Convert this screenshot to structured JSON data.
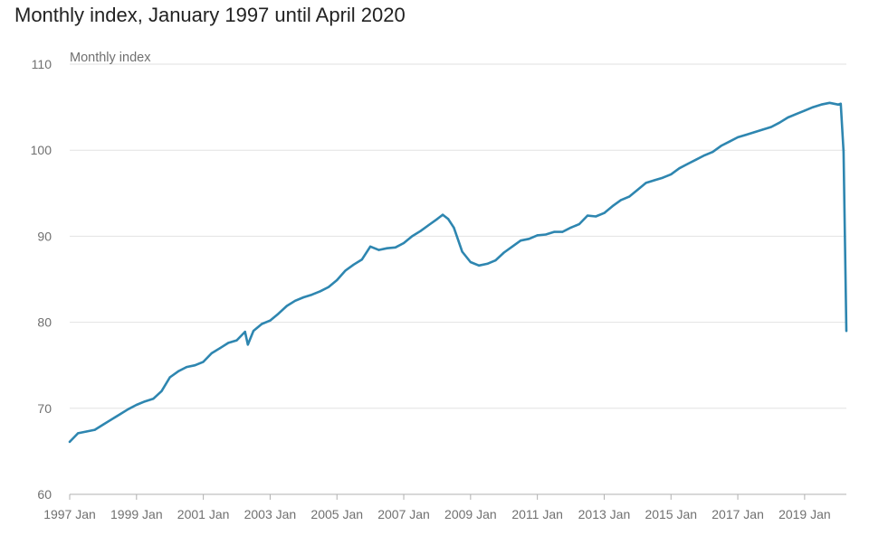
{
  "title": "Monthly index, January 1997 until April 2020",
  "colors": {
    "line": "#2e86b0",
    "grid": "#e2e2e2",
    "axis": "#b0b0b0",
    "text": "#707070"
  },
  "chart_data": {
    "type": "line",
    "title": "Monthly index, January 1997 until April 2020",
    "ylabel": "Monthly index",
    "xlabel": "",
    "ylim": [
      60,
      110
    ],
    "yticks": [
      60,
      70,
      80,
      90,
      100,
      110
    ],
    "ytick_labels": [
      "60",
      "70",
      "80",
      "90",
      "100",
      "110"
    ],
    "xlim": [
      "1997-01",
      "2020-04"
    ],
    "xtick_labels": [
      "1997 Jan",
      "1999 Jan",
      "2001 Jan",
      "2003 Jan",
      "2005 Jan",
      "2007 Jan",
      "2009 Jan",
      "2011 Jan",
      "2013 Jan",
      "2015 Jan",
      "2017 Jan",
      "2019 Jan"
    ],
    "grid": "horizontal",
    "series": [
      {
        "name": "",
        "x": [
          "1997-01",
          "1997-04",
          "1997-07",
          "1997-10",
          "1998-01",
          "1998-04",
          "1998-07",
          "1998-10",
          "1999-01",
          "1999-04",
          "1999-07",
          "1999-10",
          "2000-01",
          "2000-04",
          "2000-07",
          "2000-10",
          "2001-01",
          "2001-04",
          "2001-07",
          "2001-10",
          "2002-01",
          "2002-04",
          "2002-05",
          "2002-07",
          "2002-10",
          "2003-01",
          "2003-04",
          "2003-07",
          "2003-10",
          "2004-01",
          "2004-04",
          "2004-07",
          "2004-10",
          "2005-01",
          "2005-04",
          "2005-07",
          "2005-10",
          "2006-01",
          "2006-04",
          "2006-07",
          "2006-10",
          "2007-01",
          "2007-04",
          "2007-07",
          "2007-10",
          "2008-01",
          "2008-03",
          "2008-05",
          "2008-07",
          "2008-10",
          "2009-01",
          "2009-04",
          "2009-07",
          "2009-10",
          "2010-01",
          "2010-04",
          "2010-07",
          "2010-10",
          "2011-01",
          "2011-04",
          "2011-07",
          "2011-10",
          "2012-01",
          "2012-04",
          "2012-07",
          "2012-10",
          "2013-01",
          "2013-04",
          "2013-07",
          "2013-10",
          "2014-01",
          "2014-04",
          "2014-07",
          "2014-10",
          "2015-01",
          "2015-04",
          "2015-07",
          "2015-10",
          "2016-01",
          "2016-04",
          "2016-07",
          "2016-10",
          "2017-01",
          "2017-04",
          "2017-07",
          "2017-10",
          "2018-01",
          "2018-04",
          "2018-07",
          "2018-10",
          "2019-01",
          "2019-04",
          "2019-07",
          "2019-10",
          "2020-01",
          "2020-02",
          "2020-03",
          "2020-04"
        ],
        "y": [
          66.1,
          67.1,
          67.3,
          67.5,
          68.1,
          68.7,
          69.3,
          69.9,
          70.4,
          70.8,
          71.1,
          72.0,
          73.6,
          74.3,
          74.8,
          75.0,
          75.4,
          76.4,
          77.0,
          77.6,
          77.9,
          78.9,
          77.4,
          79.0,
          79.8,
          80.2,
          81.0,
          81.9,
          82.5,
          82.9,
          83.2,
          83.6,
          84.1,
          84.9,
          86.0,
          86.7,
          87.3,
          88.8,
          88.4,
          88.6,
          88.7,
          89.2,
          90.0,
          90.6,
          91.3,
          92.0,
          92.5,
          92.0,
          91.0,
          88.2,
          87.0,
          86.6,
          86.8,
          87.2,
          88.1,
          88.8,
          89.5,
          89.7,
          90.1,
          90.2,
          90.5,
          90.5,
          91.0,
          91.4,
          92.4,
          92.3,
          92.7,
          93.5,
          94.2,
          94.6,
          95.4,
          96.2,
          96.5,
          96.8,
          97.2,
          97.9,
          98.4,
          98.9,
          99.4,
          99.8,
          100.5,
          101.0,
          101.5,
          101.8,
          102.1,
          102.4,
          102.7,
          103.2,
          103.8,
          104.2,
          104.6,
          105.0,
          105.3,
          105.5,
          105.3,
          105.4,
          99.8,
          79.0
        ]
      }
    ]
  }
}
